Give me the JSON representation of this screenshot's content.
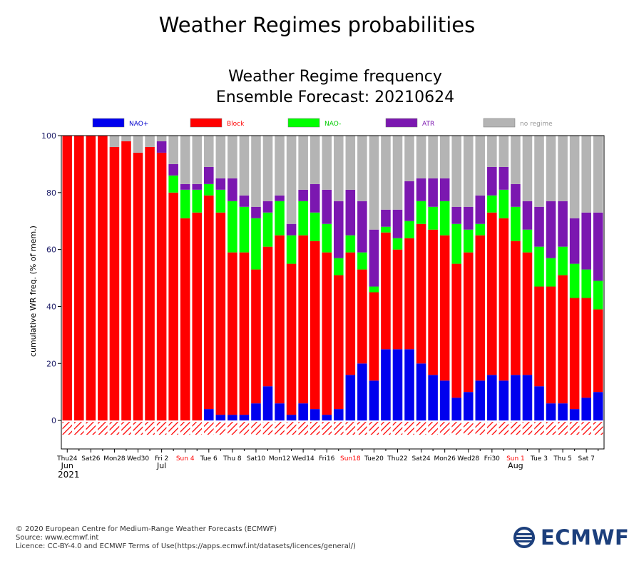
{
  "page": {
    "title": "Weather Regimes probabilities"
  },
  "chart_data": {
    "type": "bar",
    "stacked": true,
    "title": "Weather Regime frequency",
    "subtitle": "Ensemble Forecast: 20210624",
    "ylabel": "cumulative WR freq. (% of mem.)",
    "ylim": [
      -10,
      100
    ],
    "yticks": [
      0,
      20,
      40,
      60,
      80,
      100
    ],
    "legend_position": "top",
    "colors": {
      "NAO+": "#0000ee",
      "Block": "#ff0000",
      "NAO-": "#00ff00",
      "ATR": "#7b17b0",
      "no regime": "#b4b4b4"
    },
    "legend_text_colors": {
      "NAO+": "#0000cc",
      "Block": "#ff0000",
      "NAO-": "#00cc00",
      "ATR": "#7b17b0",
      "no regime": "#999999"
    },
    "series": [
      {
        "name": "NAO+",
        "values": [
          0,
          0,
          0,
          0,
          0,
          0,
          0,
          0,
          0,
          0,
          0,
          0,
          4,
          2,
          2,
          2,
          6,
          12,
          6,
          2,
          6,
          4,
          2,
          4,
          16,
          20,
          14,
          25,
          25,
          25,
          20,
          16,
          14,
          8,
          10,
          14,
          16,
          14,
          16,
          16,
          12,
          6,
          6,
          4,
          8,
          10
        ]
      },
      {
        "name": "Block",
        "values": [
          100,
          100,
          100,
          100,
          96,
          98,
          94,
          96,
          94,
          80,
          71,
          73,
          75,
          71,
          57,
          57,
          47,
          49,
          59,
          53,
          59,
          59,
          57,
          47,
          43,
          33,
          31,
          41,
          35,
          39,
          49,
          51,
          51,
          47,
          49,
          51,
          57,
          57,
          47,
          43,
          35,
          41,
          45,
          39,
          35,
          29
        ]
      },
      {
        "name": "NAO-",
        "values": [
          0,
          0,
          0,
          0,
          0,
          0,
          0,
          0,
          0,
          6,
          10,
          8,
          4,
          8,
          18,
          16,
          18,
          12,
          12,
          10,
          12,
          10,
          10,
          6,
          6,
          6,
          2,
          2,
          4,
          6,
          8,
          8,
          12,
          14,
          8,
          4,
          6,
          10,
          12,
          8,
          14,
          10,
          10,
          12,
          10,
          10
        ]
      },
      {
        "name": "ATR",
        "values": [
          0,
          0,
          0,
          0,
          0,
          0,
          0,
          0,
          4,
          4,
          2,
          2,
          6,
          4,
          8,
          4,
          4,
          4,
          2,
          4,
          4,
          10,
          12,
          20,
          16,
          18,
          20,
          6,
          10,
          14,
          8,
          10,
          8,
          6,
          8,
          10,
          10,
          8,
          8,
          10,
          14,
          20,
          16,
          16,
          20,
          24
        ]
      },
      {
        "name": "no regime",
        "values": [
          0,
          0,
          0,
          0,
          4,
          2,
          6,
          4,
          2,
          10,
          17,
          17,
          11,
          15,
          15,
          21,
          25,
          23,
          21,
          31,
          19,
          17,
          19,
          23,
          19,
          23,
          33,
          26,
          26,
          16,
          15,
          15,
          15,
          25,
          25,
          21,
          11,
          11,
          17,
          23,
          25,
          23,
          23,
          29,
          27,
          27
        ]
      }
    ],
    "x_tick_labels": [
      {
        "index": 0,
        "label": "Thu24",
        "color": "#000000"
      },
      {
        "index": 2,
        "label": "Sat26",
        "color": "#000000"
      },
      {
        "index": 4,
        "label": "Mon28",
        "color": "#000000"
      },
      {
        "index": 6,
        "label": "Wed30",
        "color": "#000000"
      },
      {
        "index": 8,
        "label": "Fri 2",
        "color": "#000000"
      },
      {
        "index": 10,
        "label": "Sun 4",
        "color": "#ff0000"
      },
      {
        "index": 12,
        "label": "Tue 6",
        "color": "#000000"
      },
      {
        "index": 14,
        "label": "Thu 8",
        "color": "#000000"
      },
      {
        "index": 16,
        "label": "Sat10",
        "color": "#000000"
      },
      {
        "index": 18,
        "label": "Mon12",
        "color": "#000000"
      },
      {
        "index": 20,
        "label": "Wed14",
        "color": "#000000"
      },
      {
        "index": 22,
        "label": "Fri16",
        "color": "#000000"
      },
      {
        "index": 24,
        "label": "Sun18",
        "color": "#ff0000"
      },
      {
        "index": 26,
        "label": "Tue20",
        "color": "#000000"
      },
      {
        "index": 28,
        "label": "Thu22",
        "color": "#000000"
      },
      {
        "index": 30,
        "label": "Sat24",
        "color": "#000000"
      },
      {
        "index": 32,
        "label": "Mon26",
        "color": "#000000"
      },
      {
        "index": 34,
        "label": "Wed28",
        "color": "#000000"
      },
      {
        "index": 36,
        "label": "Fri30",
        "color": "#000000"
      },
      {
        "index": 38,
        "label": "Sun 1",
        "color": "#ff0000"
      },
      {
        "index": 40,
        "label": "Tue 3",
        "color": "#000000"
      },
      {
        "index": 42,
        "label": "Thu 5",
        "color": "#000000"
      },
      {
        "index": 44,
        "label": "Sat 7",
        "color": "#000000"
      }
    ],
    "month_labels": [
      {
        "index": 0,
        "label": "Jun"
      },
      {
        "index": 8,
        "label": "Jul"
      },
      {
        "index": 38,
        "label": "Aug"
      }
    ],
    "year_label": {
      "index": 0,
      "label": "2021"
    },
    "grid": false
  },
  "footer": {
    "copyright": "© 2020 European Centre for Medium-Range Weather Forecasts (ECMWF)",
    "source": "Source: www.ecmwf.int",
    "licence": "Licence: CC-BY-4.0 and ECMWF Terms of Use(https://apps.ecmwf.int/datasets/licences/general/)"
  },
  "logo": {
    "text": "ECMWF",
    "color": "#1c3f7c"
  }
}
